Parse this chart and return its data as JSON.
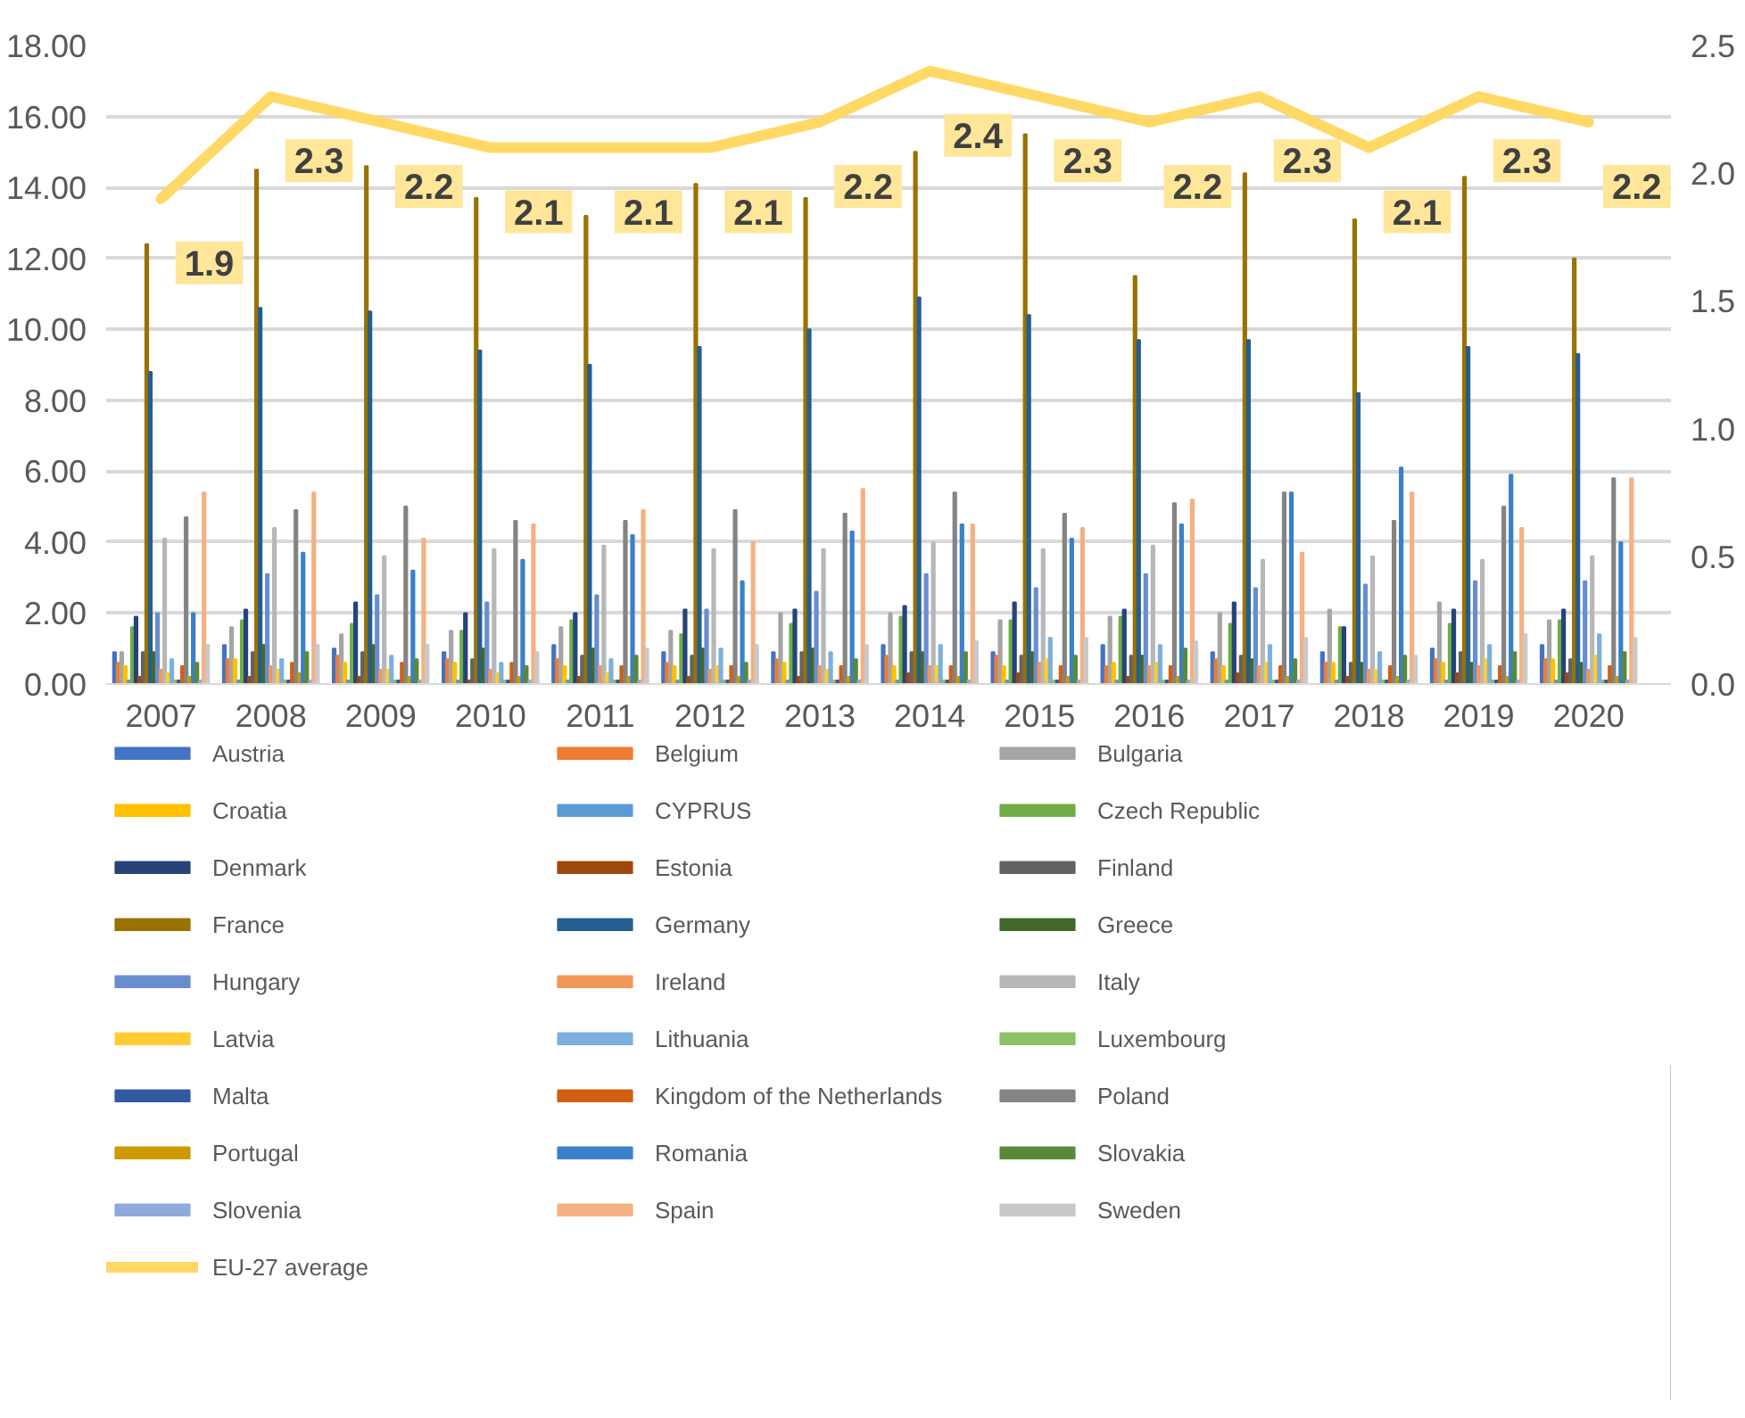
{
  "chart_data": {
    "type": "bar",
    "categories": [
      "2007",
      "2008",
      "2009",
      "2010",
      "2011",
      "2012",
      "2013",
      "2014",
      "2015",
      "2016",
      "2017",
      "2018",
      "2019",
      "2020"
    ],
    "ylim": [
      0,
      18
    ],
    "yticks": [
      {
        "value": 0,
        "label": "0.00"
      },
      {
        "value": 2,
        "label": "2.00"
      },
      {
        "value": 4,
        "label": "4.00"
      },
      {
        "value": 6,
        "label": "6.00"
      },
      {
        "value": 8,
        "label": "8.00"
      },
      {
        "value": 10,
        "label": "10.00"
      },
      {
        "value": 12,
        "label": "12.00"
      },
      {
        "value": 14,
        "label": "14.00"
      },
      {
        "value": 16,
        "label": "16.00"
      },
      {
        "value": 18,
        "label": "18.00"
      }
    ],
    "y2lim": [
      0,
      2.5
    ],
    "y2ticks": [
      {
        "value": 0,
        "label": "0.0"
      },
      {
        "value": 0.5,
        "label": "0.5"
      },
      {
        "value": 1,
        "label": "1.0"
      },
      {
        "value": 1.5,
        "label": "1.5"
      },
      {
        "value": 2,
        "label": "2.0"
      },
      {
        "value": 2.5,
        "label": "2.5"
      }
    ],
    "grid": "y",
    "legend": "bottom",
    "series": [
      {
        "name": "Austria",
        "color": "#4472c4",
        "values": [
          0.9,
          1.1,
          1.0,
          0.9,
          1.1,
          0.9,
          0.9,
          1.1,
          0.9,
          1.1,
          0.9,
          0.9,
          1.0,
          1.1
        ]
      },
      {
        "name": "Belgium",
        "color": "#ed7d31",
        "values": [
          0.6,
          0.7,
          0.8,
          0.7,
          0.7,
          0.6,
          0.7,
          0.8,
          0.8,
          0.5,
          0.7,
          0.6,
          0.7,
          0.7
        ]
      },
      {
        "name": "Bulgaria",
        "color": "#a5a5a5",
        "values": [
          0.9,
          1.6,
          1.4,
          1.5,
          1.6,
          1.5,
          2.0,
          2.0,
          1.8,
          1.9,
          2.0,
          2.1,
          2.3,
          1.8
        ]
      },
      {
        "name": "Croatia",
        "color": "#ffc000",
        "values": [
          0.5,
          0.7,
          0.6,
          0.6,
          0.5,
          0.5,
          0.6,
          0.5,
          0.5,
          0.6,
          0.5,
          0.6,
          0.6,
          0.7
        ]
      },
      {
        "name": "CYPRUS",
        "color": "#5b9bd5",
        "values": [
          0.1,
          0.1,
          0.1,
          0.1,
          0.1,
          0.1,
          0.1,
          0.1,
          0.1,
          0.1,
          0.1,
          0.1,
          0.1,
          0.1
        ]
      },
      {
        "name": "Czech Republic",
        "color": "#70ad47",
        "values": [
          1.6,
          1.8,
          1.7,
          1.5,
          1.8,
          1.4,
          1.7,
          1.9,
          1.8,
          1.9,
          1.7,
          1.6,
          1.7,
          1.8
        ]
      },
      {
        "name": "Denmark",
        "color": "#264478",
        "values": [
          1.9,
          2.1,
          2.3,
          2.0,
          2.0,
          2.1,
          2.1,
          2.2,
          2.3,
          2.1,
          2.3,
          1.6,
          2.1,
          2.1
        ]
      },
      {
        "name": "Estonia",
        "color": "#9e480e",
        "values": [
          0.2,
          0.2,
          0.2,
          0.1,
          0.2,
          0.2,
          0.2,
          0.3,
          0.3,
          0.2,
          0.3,
          0.2,
          0.3,
          0.3
        ]
      },
      {
        "name": "Finland",
        "color": "#636363",
        "values": [
          0.9,
          0.9,
          0.9,
          0.7,
          0.8,
          0.8,
          0.9,
          0.9,
          0.8,
          0.8,
          0.8,
          0.6,
          0.9,
          0.7
        ]
      },
      {
        "name": "France",
        "color": "#997300",
        "values": [
          12.4,
          14.5,
          14.6,
          13.7,
          13.2,
          14.1,
          13.7,
          15.0,
          15.5,
          11.5,
          14.4,
          13.1,
          14.3,
          12.0
        ]
      },
      {
        "name": "Germany",
        "color": "#255e91",
        "values": [
          8.8,
          10.6,
          10.5,
          9.4,
          9.0,
          9.5,
          10.0,
          10.9,
          10.4,
          9.7,
          9.7,
          8.2,
          9.5,
          9.3
        ]
      },
      {
        "name": "Greece",
        "color": "#43682b",
        "values": [
          0.9,
          1.1,
          1.1,
          1.0,
          1.0,
          1.0,
          1.0,
          0.9,
          0.9,
          0.8,
          0.7,
          0.6,
          0.6,
          0.6
        ]
      },
      {
        "name": "Hungary",
        "color": "#698ed0",
        "values": [
          2.0,
          3.1,
          2.5,
          2.3,
          2.5,
          2.1,
          2.6,
          3.1,
          2.7,
          3.1,
          2.7,
          2.8,
          2.9,
          2.9
        ]
      },
      {
        "name": "Ireland",
        "color": "#f1975a",
        "values": [
          0.4,
          0.5,
          0.4,
          0.4,
          0.5,
          0.4,
          0.5,
          0.5,
          0.6,
          0.5,
          0.5,
          0.4,
          0.5,
          0.4
        ]
      },
      {
        "name": "Italy",
        "color": "#b7b7b7",
        "values": [
          4.1,
          4.4,
          3.6,
          3.8,
          3.9,
          3.8,
          3.8,
          4.0,
          3.8,
          3.9,
          3.5,
          3.6,
          3.5,
          3.6
        ]
      },
      {
        "name": "Latvia",
        "color": "#ffcd33",
        "values": [
          0.3,
          0.4,
          0.4,
          0.3,
          0.3,
          0.5,
          0.4,
          0.5,
          0.7,
          0.6,
          0.6,
          0.4,
          0.7,
          0.8
        ]
      },
      {
        "name": "Lithuania",
        "color": "#7cafdd",
        "values": [
          0.7,
          0.7,
          0.8,
          0.6,
          0.7,
          1.0,
          0.9,
          1.1,
          1.3,
          1.1,
          1.1,
          0.9,
          1.1,
          1.4
        ]
      },
      {
        "name": "Luxembourg",
        "color": "#8cc168",
        "values": [
          0.1,
          0.1,
          0.1,
          0.1,
          0.1,
          0.1,
          0.1,
          0.1,
          0.1,
          0.1,
          0.1,
          0.1,
          0.1,
          0.1
        ]
      },
      {
        "name": "Malta",
        "color": "#335aa1",
        "values": [
          0.1,
          0.1,
          0.1,
          0.1,
          0.1,
          0.1,
          0.1,
          0.1,
          0.1,
          0.1,
          0.1,
          0.1,
          0.1,
          0.1
        ]
      },
      {
        "name": "Kingdom of the Netherlands",
        "color": "#d26012",
        "values": [
          0.5,
          0.6,
          0.6,
          0.6,
          0.5,
          0.5,
          0.5,
          0.5,
          0.5,
          0.5,
          0.5,
          0.5,
          0.5,
          0.5
        ]
      },
      {
        "name": "Poland",
        "color": "#848484",
        "values": [
          4.7,
          4.9,
          5.0,
          4.6,
          4.6,
          4.9,
          4.8,
          5.4,
          4.8,
          5.1,
          5.4,
          4.6,
          5.0,
          5.8
        ]
      },
      {
        "name": "Portugal",
        "color": "#cc9a00",
        "values": [
          0.2,
          0.3,
          0.2,
          0.2,
          0.2,
          0.2,
          0.2,
          0.2,
          0.2,
          0.2,
          0.2,
          0.2,
          0.2,
          0.2
        ]
      },
      {
        "name": "Romania",
        "color": "#3a80c8",
        "values": [
          2.0,
          3.7,
          3.2,
          3.5,
          4.2,
          2.9,
          4.3,
          4.5,
          4.1,
          4.5,
          5.4,
          6.1,
          5.9,
          4.0
        ]
      },
      {
        "name": "Slovakia",
        "color": "#5a8a39",
        "values": [
          0.6,
          0.9,
          0.7,
          0.5,
          0.8,
          0.6,
          0.7,
          0.9,
          0.8,
          1.0,
          0.7,
          0.8,
          0.9,
          0.9
        ]
      },
      {
        "name": "Slovenia",
        "color": "#8faadc",
        "values": [
          0.1,
          0.1,
          0.1,
          0.1,
          0.1,
          0.1,
          0.1,
          0.1,
          0.1,
          0.1,
          0.1,
          0.1,
          0.1,
          0.1
        ]
      },
      {
        "name": "Spain",
        "color": "#f4b183",
        "values": [
          5.4,
          5.4,
          4.1,
          4.5,
          4.9,
          4.0,
          5.5,
          4.5,
          4.4,
          5.2,
          3.7,
          5.4,
          4.4,
          5.8
        ]
      },
      {
        "name": "Sweden",
        "color": "#c9c9c9",
        "values": [
          1.1,
          1.1,
          1.1,
          0.9,
          1.0,
          1.1,
          1.1,
          1.2,
          1.3,
          1.2,
          1.3,
          0.8,
          1.4,
          1.3
        ]
      },
      {
        "name": "EU-27 average",
        "color": "#ffd966",
        "type": "line",
        "axis": "y2",
        "line_style": "solid",
        "marker": "none",
        "values": [
          1.9,
          2.3,
          2.2,
          2.1,
          2.1,
          2.1,
          2.2,
          2.4,
          2.3,
          2.2,
          2.3,
          2.1,
          2.3,
          2.2
        ],
        "value_labels": [
          "1.9",
          "2.3",
          "2.2",
          "2.1",
          "2.1",
          "2.1",
          "2.2",
          "2.4",
          "2.3",
          "2.2",
          "2.3",
          "2.1",
          "2.3",
          "2.2"
        ]
      }
    ]
  }
}
